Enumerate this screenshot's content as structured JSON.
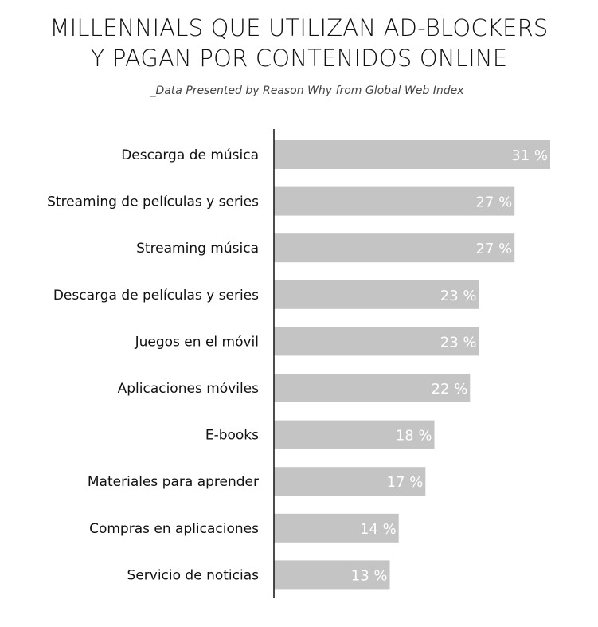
{
  "chart_data": {
    "type": "bar",
    "orientation": "horizontal",
    "title_lines": [
      "MILLENNIALS QUE UTILIZAN AD-BLOCKERS",
      "Y PAGAN POR CONTENIDOS ONLINE"
    ],
    "subtitle": "_Data Presented by Reason Why from Global Web Index",
    "categories": [
      "Descarga de música",
      "Streaming de películas y series",
      "Streaming música",
      "Descarga de películas y series",
      "Juegos en el móvil",
      "Aplicaciones móviles",
      "E-books",
      "Materiales para aprender",
      "Compras en aplicaciones",
      "Servicio de noticias"
    ],
    "values": [
      31,
      27,
      27,
      23,
      23,
      22,
      18,
      17,
      14,
      13
    ],
    "value_labels": [
      "31 %",
      "27 %",
      "27 %",
      "23 %",
      "23 %",
      "22 %",
      "18 %",
      "17 %",
      "14 %",
      "13 %"
    ],
    "unit": "%",
    "xlim": [
      0,
      31
    ],
    "grid": false,
    "legend": "none",
    "colors": {
      "bar": "#c4c4c4",
      "bar_label": "#ffffff",
      "axis": "#111111",
      "text": "#111111"
    }
  }
}
